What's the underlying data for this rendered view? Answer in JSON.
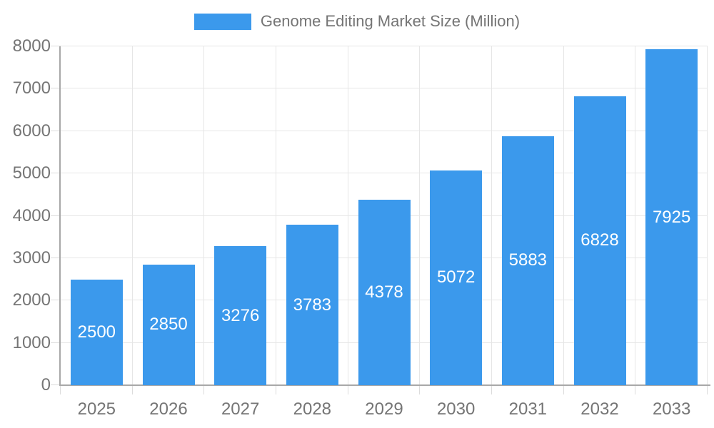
{
  "chart_data": {
    "type": "bar",
    "title": "Genome Editing Market Size (Million)",
    "legend_label": "Genome Editing Market Size (Million)",
    "categories": [
      "2025",
      "2026",
      "2027",
      "2028",
      "2029",
      "2030",
      "2031",
      "2032",
      "2033"
    ],
    "values": [
      2500,
      2850,
      3276,
      3783,
      4378,
      5072,
      5883,
      6828,
      7925
    ],
    "xlabel": "",
    "ylabel": "",
    "ylim": [
      0,
      8000
    ],
    "yticks": [
      0,
      1000,
      2000,
      3000,
      4000,
      5000,
      6000,
      7000,
      8000
    ],
    "grid": true,
    "legend_position": "top-center",
    "bar_label_position": "inside-center"
  },
  "colors": {
    "bar": "#3b99ec",
    "bar_label": "#ffffff",
    "axis": "#a8a8a8",
    "gridline": "#e6e6e6",
    "tick": "#dcdcdc",
    "label_text": "#757575",
    "background": "#ffffff"
  }
}
